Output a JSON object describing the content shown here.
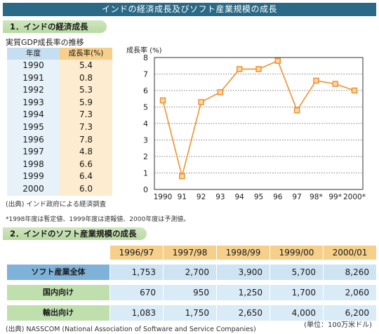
{
  "header": {
    "title": "インドの経済成長及びソフト産業規模の成長"
  },
  "section1": {
    "heading": "1．インドの経済成長",
    "subtitle": "実質GDP成長率の推移",
    "table": {
      "col_year": "年度",
      "col_rate": "成長率(%)",
      "years": [
        "1990",
        "1991",
        "1992",
        "1993",
        "1994",
        "1995",
        "1996",
        "1997",
        "1998",
        "1999",
        "2000"
      ],
      "rates": [
        "5.4",
        "0.8",
        "5.3",
        "5.9",
        "7.3",
        "7.3",
        "7.8",
        "4.8",
        "6.6",
        "6.4",
        "6.0"
      ]
    },
    "source": "(出典) インド政府による経済調査",
    "note": "*1998年度は暫定値、1999年度は速報値、2000年度は予測値。"
  },
  "chart_data": {
    "type": "line",
    "ylabel": "成長率 (%)",
    "categories": [
      "1990",
      "91",
      "92",
      "93",
      "94",
      "95",
      "96",
      "97",
      "98*",
      "99*",
      "2000*"
    ],
    "values": [
      5.4,
      0.8,
      5.3,
      5.9,
      7.3,
      7.3,
      7.8,
      4.8,
      6.6,
      6.4,
      6.0
    ],
    "ylim": [
      0,
      8
    ],
    "yticks": [
      "0",
      "1",
      "2",
      "3",
      "4",
      "5",
      "6",
      "7",
      "8"
    ],
    "grid": true,
    "colors": {
      "line": "#f0922e",
      "marker_fill": "#fbd6a8",
      "marker_stroke": "#f0922e",
      "grid": "#555555"
    }
  },
  "section2": {
    "heading": "2．インドのソフト産業規模の成長",
    "columns": [
      "1996/97",
      "1997/98",
      "1998/99",
      "1999/00",
      "2000/01"
    ],
    "rows": [
      {
        "label": "ソフト産業全体",
        "values": [
          "1,753",
          "2,700",
          "3,900",
          "5,700",
          "8,260"
        ]
      },
      {
        "label": "国内向け",
        "values": [
          "670",
          "950",
          "1,250",
          "1,700",
          "2,060"
        ]
      },
      {
        "label": "輸出向け",
        "values": [
          "1,083",
          "1,750",
          "2,650",
          "4,000",
          "6,200"
        ]
      }
    ],
    "unit": "(単位：100万米ドル)",
    "source": "(出典) NASSCOM (National Association of Software and Service Companies)"
  }
}
